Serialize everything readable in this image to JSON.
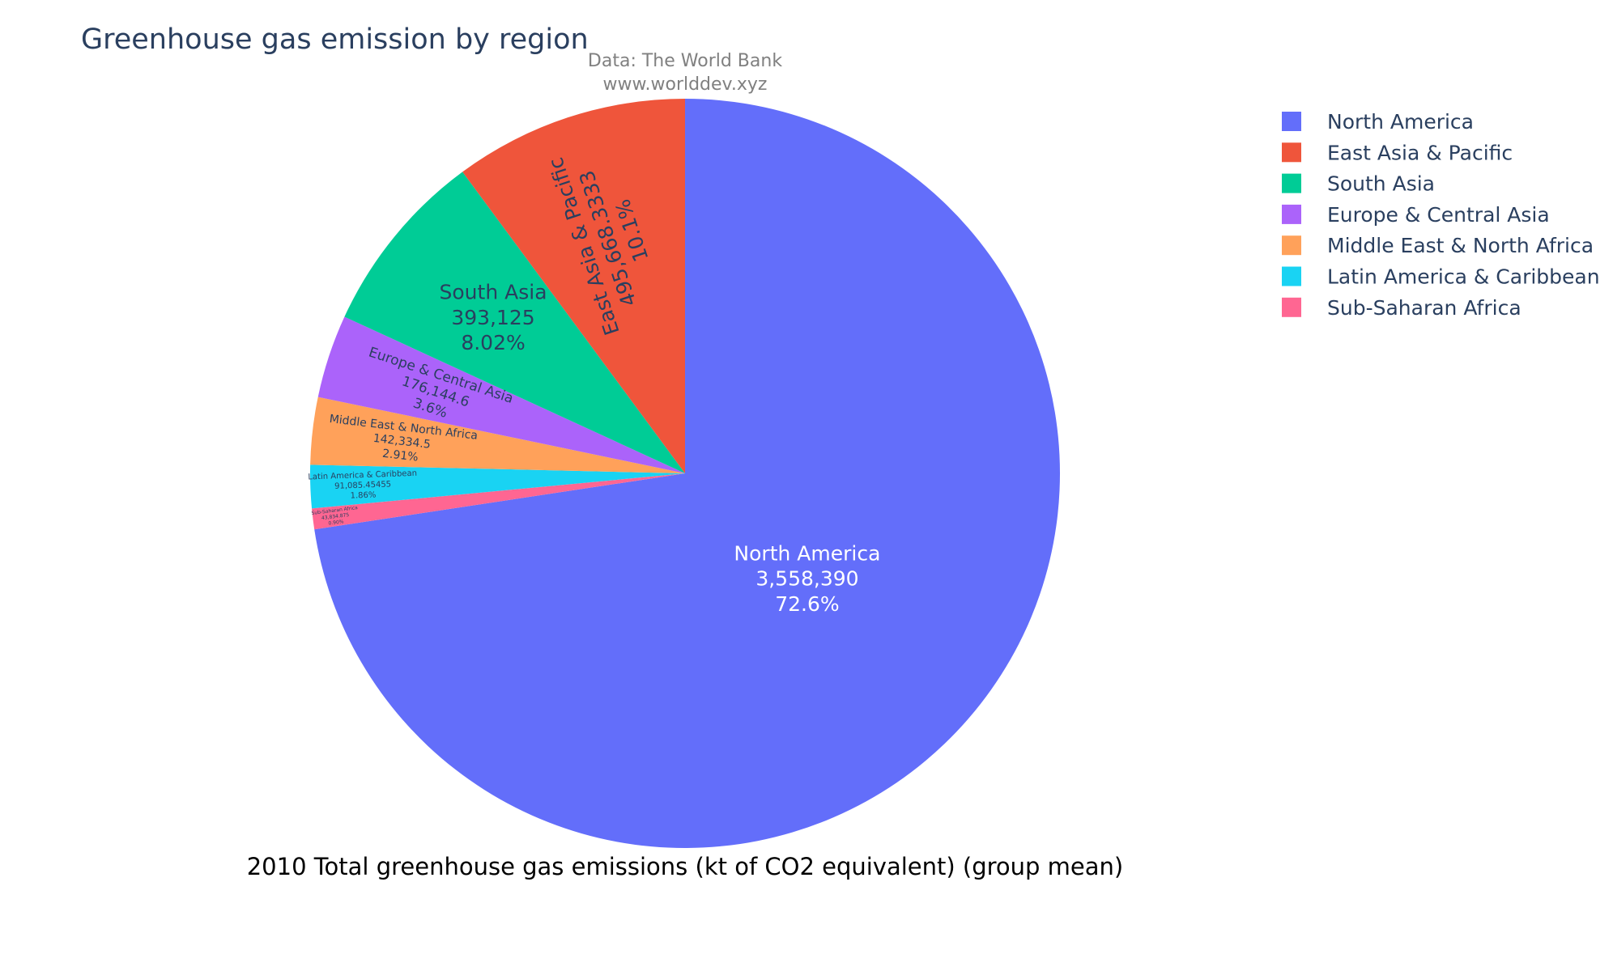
{
  "chart_data": {
    "type": "pie",
    "title": "Greenhouse gas emission by region",
    "source_lines": [
      "Data: The World Bank",
      "www.worlddev.xyz"
    ],
    "footer_label": "2010 Total greenhouse gas emissions (kt of CO2 equivalent) (group mean)",
    "legend_position": "top-right",
    "direction": "clockwise",
    "slices": [
      {
        "label": "North America",
        "value_text": "3,558,390",
        "percent_text": "72.6%",
        "value": 3558390,
        "color": "#636efa",
        "text_color": "#ffffff"
      },
      {
        "label": "Sub-Saharan Africa",
        "value_text": "43,834.875",
        "percent_text": "0.90%",
        "value": 43834.875,
        "color": "#ff6692",
        "text_color": "#2a3f5f"
      },
      {
        "label": "Latin America & Caribbean",
        "value_text": "91,085.45455",
        "percent_text": "1.86%",
        "value": 91085.45455,
        "color": "#19d3f3",
        "text_color": "#2a3f5f"
      },
      {
        "label": "Middle East & North Africa",
        "value_text": "142,334.5",
        "percent_text": "2.91%",
        "value": 142334.5,
        "color": "#ffa15a",
        "text_color": "#2a3f5f"
      },
      {
        "label": "Europe & Central Asia",
        "value_text": "176,144.6",
        "percent_text": "3.6%",
        "value": 176144.6,
        "color": "#ab63fa",
        "text_color": "#2a3f5f"
      },
      {
        "label": "South Asia",
        "value_text": "393,125",
        "percent_text": "8.02%",
        "value": 393125,
        "color": "#00cc96",
        "text_color": "#2a3f5f"
      },
      {
        "label": "East Asia & Pacific",
        "value_text": "495,668.3333",
        "percent_text": "10.1%",
        "value": 495668.3333,
        "color": "#ef553b",
        "text_color": "#2a3f5f"
      }
    ],
    "legend": [
      {
        "label": "North America",
        "color": "#636efa"
      },
      {
        "label": "East Asia & Pacific",
        "color": "#ef553b"
      },
      {
        "label": "South Asia",
        "color": "#00cc96"
      },
      {
        "label": "Europe & Central Asia",
        "color": "#ab63fa"
      },
      {
        "label": "Middle East & North Africa",
        "color": "#ffa15a"
      },
      {
        "label": "Latin America & Caribbean",
        "color": "#19d3f3"
      },
      {
        "label": "Sub-Saharan Africa",
        "color": "#ff6692"
      }
    ]
  }
}
